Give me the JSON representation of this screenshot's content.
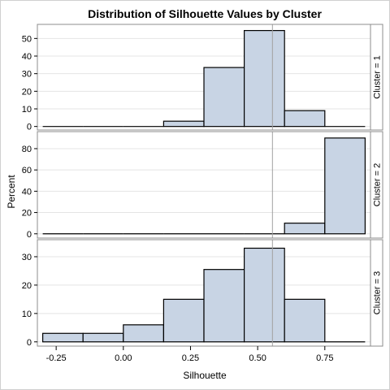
{
  "chart_data": {
    "type": "bar",
    "title": "Distribution of Silhouette Values by Cluster",
    "xlabel": "Silhouette",
    "ylabel": "Percent",
    "xlim": [
      -0.32,
      0.92
    ],
    "bin_width": 0.15,
    "x_ticks": [
      -0.25,
      0.0,
      0.25,
      0.5,
      0.75
    ],
    "x_tick_labels": [
      "-0.25",
      "0.00",
      "0.25",
      "0.50",
      "0.75"
    ],
    "reference_line_x": 0.555,
    "colors": {
      "bar_fill": "#c8d4e4",
      "bar_stroke": "#000000",
      "grid": "#e4e4e4",
      "ref_line": "#a0a0a0",
      "panel_border": "#8c8c8c",
      "strip_bg": "#ffffff"
    },
    "grid": true,
    "panels": [
      {
        "label": "Cluster = 1",
        "ylim": [
          -2,
          58
        ],
        "y_ticks": [
          0,
          10,
          20,
          30,
          40,
          50
        ],
        "y_tick_labels": [
          "0",
          "10",
          "20",
          "30",
          "40",
          "50"
        ],
        "bins": [
          {
            "start": -0.3,
            "end": -0.15,
            "value": 0
          },
          {
            "start": -0.15,
            "end": 0.0,
            "value": 0
          },
          {
            "start": 0.0,
            "end": 0.15,
            "value": 0
          },
          {
            "start": 0.15,
            "end": 0.3,
            "value": 3
          },
          {
            "start": 0.3,
            "end": 0.45,
            "value": 33.5
          },
          {
            "start": 0.45,
            "end": 0.6,
            "value": 54.5
          },
          {
            "start": 0.6,
            "end": 0.75,
            "value": 9
          },
          {
            "start": 0.75,
            "end": 0.9,
            "value": 0
          }
        ]
      },
      {
        "label": "Cluster = 2",
        "ylim": [
          -4,
          96
        ],
        "y_ticks": [
          0,
          20,
          40,
          60,
          80
        ],
        "y_tick_labels": [
          "0",
          "20",
          "40",
          "60",
          "80"
        ],
        "bins": [
          {
            "start": -0.3,
            "end": -0.15,
            "value": 0
          },
          {
            "start": -0.15,
            "end": 0.0,
            "value": 0
          },
          {
            "start": 0.0,
            "end": 0.15,
            "value": 0
          },
          {
            "start": 0.15,
            "end": 0.3,
            "value": 0
          },
          {
            "start": 0.3,
            "end": 0.45,
            "value": 0
          },
          {
            "start": 0.45,
            "end": 0.6,
            "value": 0
          },
          {
            "start": 0.6,
            "end": 0.75,
            "value": 10
          },
          {
            "start": 0.75,
            "end": 0.9,
            "value": 90
          }
        ]
      },
      {
        "label": "Cluster = 3",
        "ylim": [
          -1.5,
          36
        ],
        "y_ticks": [
          0,
          10,
          20,
          30
        ],
        "y_tick_labels": [
          "0",
          "10",
          "20",
          "30"
        ],
        "bins": [
          {
            "start": -0.3,
            "end": -0.15,
            "value": 3
          },
          {
            "start": -0.15,
            "end": 0.0,
            "value": 3
          },
          {
            "start": 0.0,
            "end": 0.15,
            "value": 6
          },
          {
            "start": 0.15,
            "end": 0.3,
            "value": 15
          },
          {
            "start": 0.3,
            "end": 0.45,
            "value": 25.5
          },
          {
            "start": 0.45,
            "end": 0.6,
            "value": 33
          },
          {
            "start": 0.6,
            "end": 0.75,
            "value": 15
          },
          {
            "start": 0.75,
            "end": 0.9,
            "value": 0
          }
        ]
      }
    ]
  }
}
